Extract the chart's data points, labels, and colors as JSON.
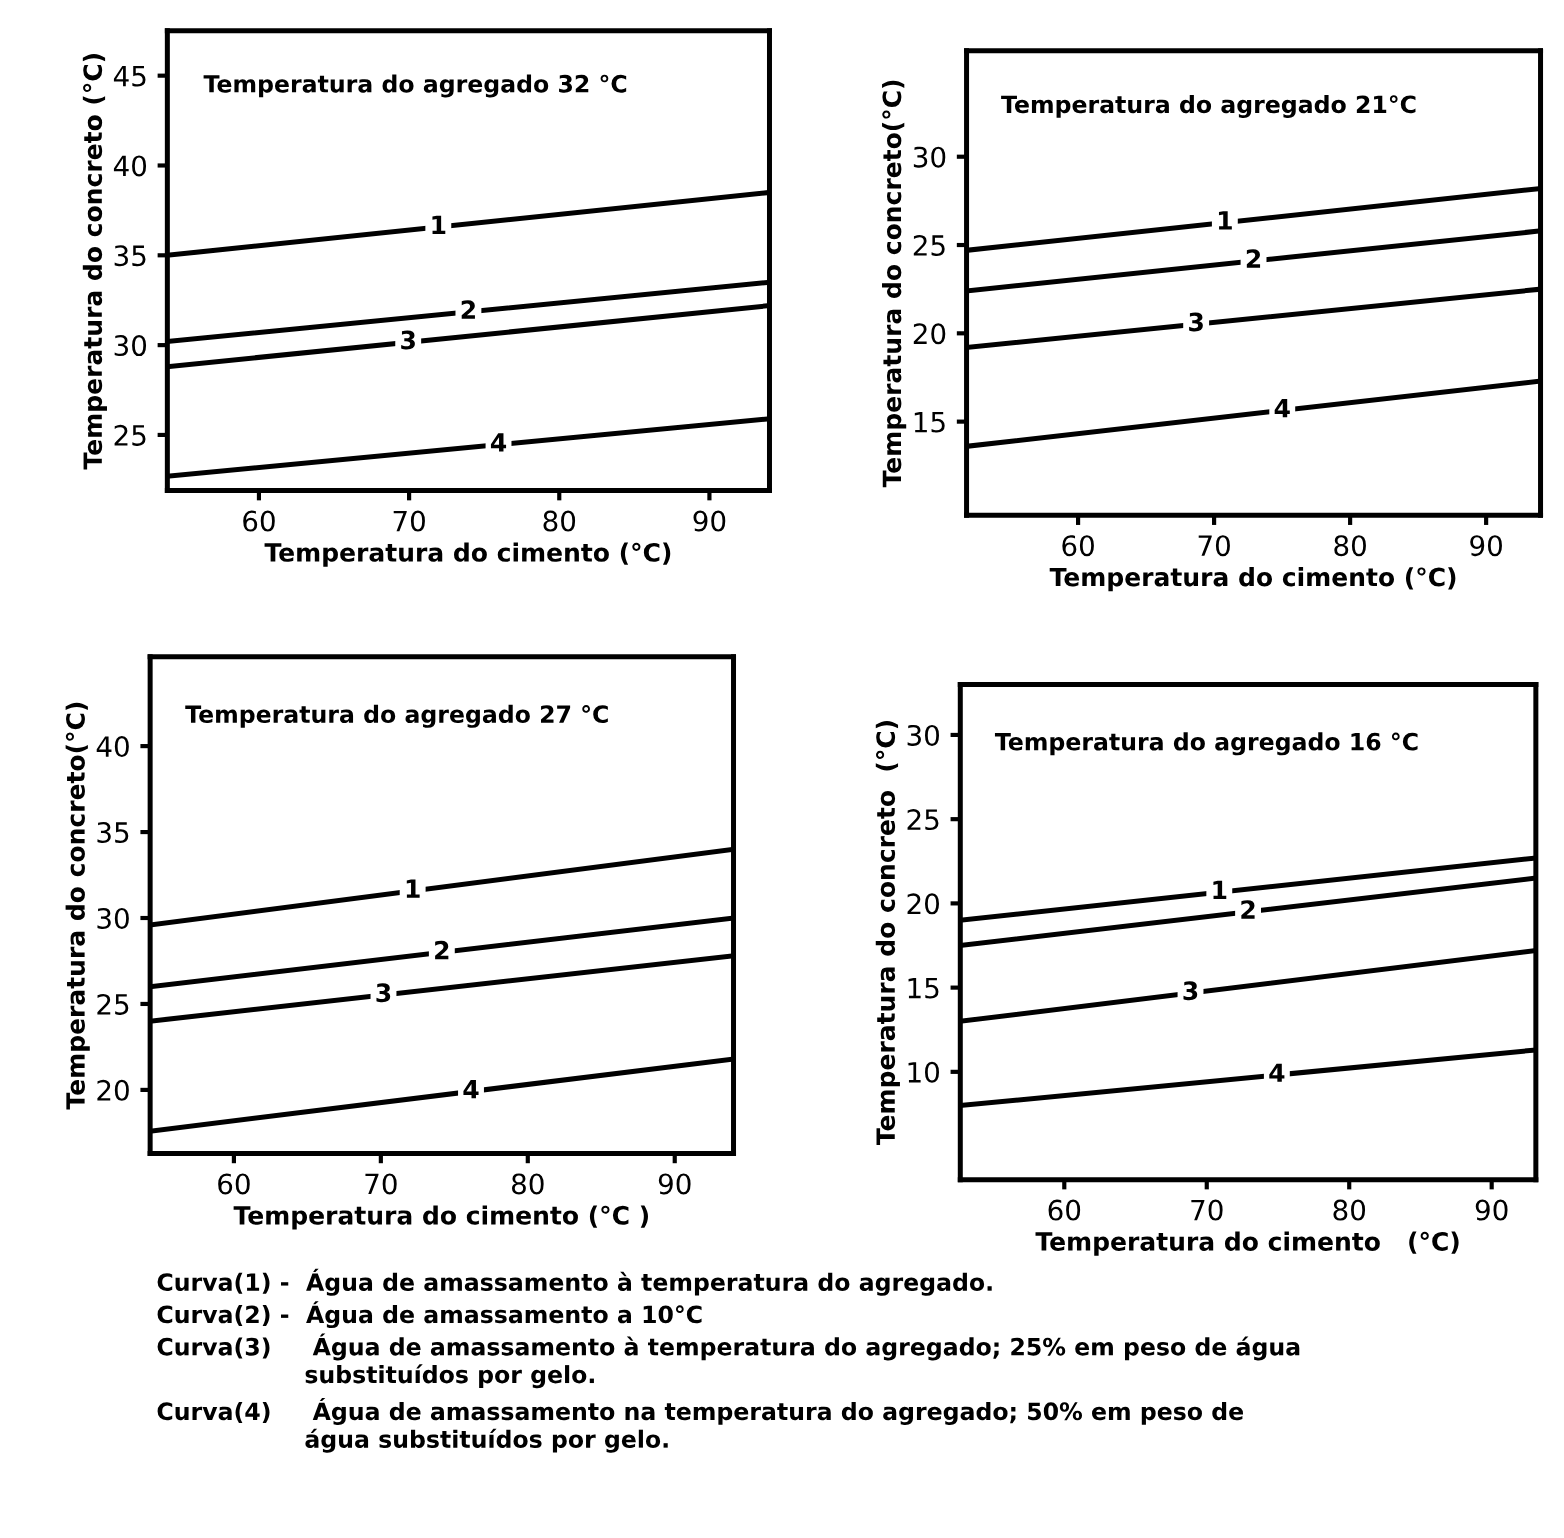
{
  "chart_data": [
    {
      "type": "line",
      "title": "Temperatura do agregado 32 °C",
      "xlabel": "Temperatura do cimento (°C)",
      "ylabel": "Temperatura do concreto (°C)",
      "xlim": [
        53.9,
        94
      ],
      "xticks": [
        60,
        70,
        80,
        90
      ],
      "ylim": [
        21.9,
        47.5
      ],
      "yticks": [
        25,
        30,
        35,
        40,
        45
      ],
      "grid": false,
      "legend": false,
      "series": [
        {
          "name": "1",
          "color": "#000000",
          "x": [
            53.9,
            94
          ],
          "values": [
            35.0,
            38.5
          ]
        },
        {
          "name": "2",
          "color": "#000000",
          "x": [
            53.9,
            94
          ],
          "values": [
            30.2,
            33.5
          ]
        },
        {
          "name": "3",
          "color": "#000000",
          "x": [
            53.9,
            94
          ],
          "values": [
            28.8,
            32.2
          ]
        },
        {
          "name": "4",
          "color": "#000000",
          "x": [
            53.9,
            94
          ],
          "values": [
            22.7,
            25.9
          ]
        }
      ]
    },
    {
      "type": "line",
      "title": "Temperatura do agregado 21°C",
      "xlabel": "Temperatura do cimento (°C)",
      "ylabel": "Temperatura do concreto(°C)",
      "xlim": [
        51.8,
        94
      ],
      "xticks": [
        60,
        70,
        80,
        90
      ],
      "ylim": [
        9.7,
        36
      ],
      "yticks": [
        15,
        20,
        25,
        30
      ],
      "grid": false,
      "legend": false,
      "series": [
        {
          "name": "1",
          "color": "#000000",
          "x": [
            51.8,
            94
          ],
          "values": [
            24.7,
            28.2
          ]
        },
        {
          "name": "2",
          "color": "#000000",
          "x": [
            51.8,
            94
          ],
          "values": [
            22.4,
            25.8
          ]
        },
        {
          "name": "3",
          "color": "#000000",
          "x": [
            51.8,
            94
          ],
          "values": [
            19.2,
            22.5
          ]
        },
        {
          "name": "4",
          "color": "#000000",
          "x": [
            51.8,
            94
          ],
          "values": [
            13.6,
            17.3
          ]
        }
      ]
    },
    {
      "type": "line",
      "title": "Temperatura do agregado 27 °C",
      "xlabel": "Temperatura do cimento (°C )",
      "ylabel": "Temperatura do concreto(°C)",
      "xlim": [
        54.3,
        94
      ],
      "xticks": [
        60,
        70,
        80,
        90
      ],
      "ylim": [
        16.3,
        45.2
      ],
      "yticks": [
        20,
        25,
        30,
        35,
        40
      ],
      "grid": false,
      "legend": false,
      "series": [
        {
          "name": "1",
          "color": "#000000",
          "x": [
            54.3,
            94
          ],
          "values": [
            29.6,
            34.0
          ]
        },
        {
          "name": "2",
          "color": "#000000",
          "x": [
            54.3,
            94
          ],
          "values": [
            26.0,
            30.0
          ]
        },
        {
          "name": "3",
          "color": "#000000",
          "x": [
            54.3,
            94
          ],
          "values": [
            24.0,
            27.8
          ]
        },
        {
          "name": "4",
          "color": "#000000",
          "x": [
            54.3,
            94
          ],
          "values": [
            17.6,
            21.8
          ]
        }
      ]
    },
    {
      "type": "line",
      "title": "Temperatura do agregado 16 °C",
      "xlabel": "Temperatura do cimento   (°C)",
      "ylabel": "Temperatura do concreto  (°C)",
      "xlim": [
        52.7,
        93.1
      ],
      "xticks": [
        60,
        70,
        80,
        90
      ],
      "ylim": [
        3.6,
        33
      ],
      "yticks": [
        10,
        15,
        20,
        25,
        30
      ],
      "grid": false,
      "legend": false,
      "series": [
        {
          "name": "1",
          "color": "#000000",
          "x": [
            52.7,
            93.1
          ],
          "values": [
            19.0,
            22.7
          ]
        },
        {
          "name": "2",
          "color": "#000000",
          "x": [
            52.7,
            93.1
          ],
          "values": [
            17.5,
            21.5
          ]
        },
        {
          "name": "3",
          "color": "#000000",
          "x": [
            52.7,
            93.1
          ],
          "values": [
            13.0,
            17.2
          ]
        },
        {
          "name": "4",
          "color": "#000000",
          "x": [
            52.7,
            93.1
          ],
          "values": [
            8.0,
            11.3
          ]
        }
      ],
      "annotations": [
        "Curva(1) -  Água de amassamento à temperatura do agregado.",
        "Curva(2) -  Água de amassamento a 10°C",
        "Curva(3)     Água de amassamento à temperatura do agregado; 25% em peso de água\n                  substituídos por gelo.",
        "Curva(4)     Água de amassamento na temperatura do agregado; 50% em peso de\n                  água substituídos por gelo."
      ]
    }
  ]
}
